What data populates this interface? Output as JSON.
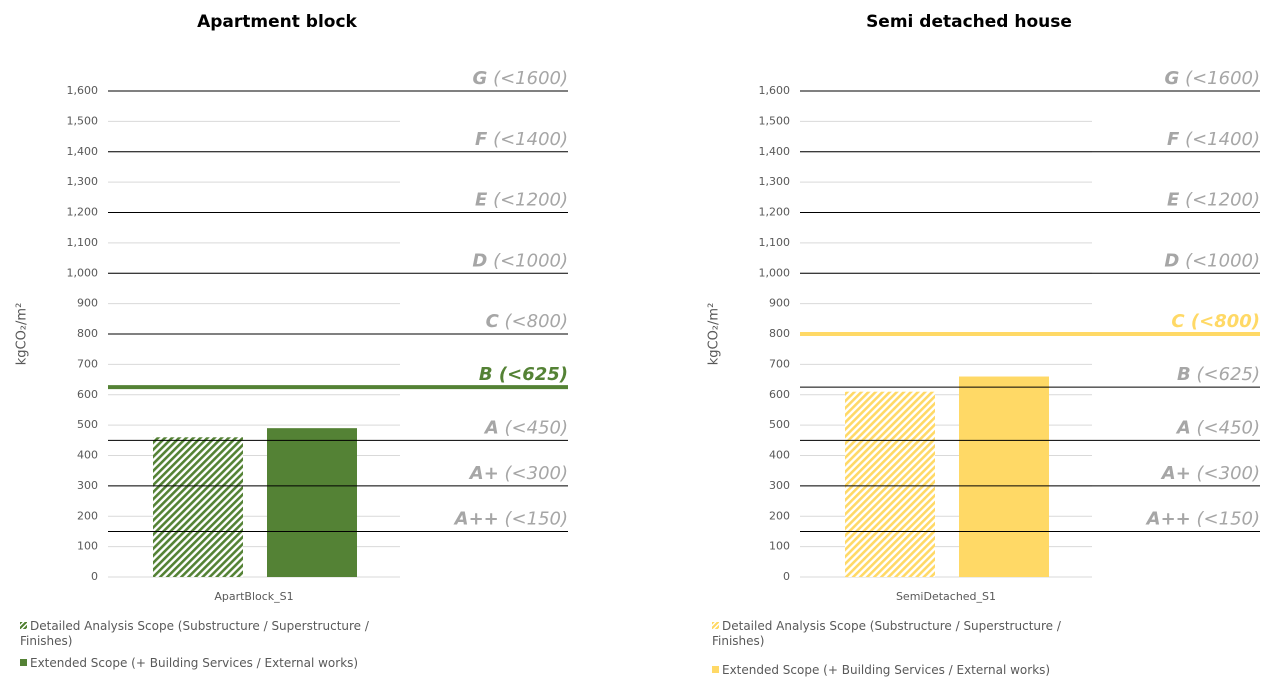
{
  "chart_data": [
    {
      "type": "bar",
      "title": "Apartment block",
      "y_label": "kgCO₂/m²",
      "categories": [
        "ApartBlock_S1"
      ],
      "series": [
        {
          "name": "Detailed Analysis Scope (Substructure / Superstructure / Finishes)",
          "color": "#548235",
          "pattern": "hatch",
          "values": [
            460
          ]
        },
        {
          "name": "Extended Scope (+ Building Services  / External works)",
          "color": "#548235",
          "values": [
            490
          ]
        }
      ],
      "ylim": [
        0,
        1600
      ],
      "yticks": [
        0,
        100,
        200,
        300,
        400,
        500,
        600,
        700,
        800,
        900,
        {
          "value": 1000,
          "label": "1,000"
        },
        {
          "value": 1100,
          "label": "1,100"
        },
        {
          "value": 1200,
          "label": "1,200"
        },
        {
          "value": 1300,
          "label": "1,300"
        },
        {
          "value": 1400,
          "label": "1,400"
        },
        {
          "value": 1500,
          "label": "1,500"
        },
        {
          "value": 1600,
          "label": "1,600"
        }
      ],
      "grid": true,
      "thresholds": [
        {
          "rating": "G",
          "limit": "(<1600)",
          "value": 1600
        },
        {
          "rating": "F",
          "limit": "(<1400)",
          "value": 1400
        },
        {
          "rating": "E",
          "limit": "(<1200)",
          "value": 1200
        },
        {
          "rating": "D",
          "limit": "(<1000)",
          "value": 1000
        },
        {
          "rating": "C",
          "limit": "(<800)",
          "value": 800
        },
        {
          "rating": "B",
          "limit": "(<625)",
          "value": 625
        },
        {
          "rating": "A",
          "limit": "(<450)",
          "value": 450
        },
        {
          "rating": "A+",
          "limit": "(<300)",
          "value": 300
        },
        {
          "rating": "A++",
          "limit": "(<150)",
          "value": 150
        }
      ],
      "highlighted": "B",
      "highlight_color": "#548235"
    },
    {
      "type": "bar",
      "title": "Semi detached house",
      "y_label": "kgCO₂/m²",
      "categories": [
        "SemiDetached_S1"
      ],
      "series": [
        {
          "name": "Detailed Analysis Scope (Substructure / Superstructure / Finishes)",
          "color": "#ffd966",
          "pattern": "hatch",
          "values": [
            610
          ]
        },
        {
          "name": "Extended Scope (+ Building Services  / External works)",
          "color": "#ffd966",
          "values": [
            660
          ]
        }
      ],
      "ylim": [
        0,
        1600
      ],
      "yticks": [
        0,
        100,
        200,
        300,
        400,
        500,
        600,
        700,
        800,
        900,
        {
          "value": 1000,
          "label": "1,000"
        },
        {
          "value": 1100,
          "label": "1,100"
        },
        {
          "value": 1200,
          "label": "1,200"
        },
        {
          "value": 1300,
          "label": "1,300"
        },
        {
          "value": 1400,
          "label": "1,400"
        },
        {
          "value": 1500,
          "label": "1,500"
        },
        {
          "value": 1600,
          "label": "1,600"
        }
      ],
      "grid": true,
      "thresholds": [
        {
          "rating": "G",
          "limit": "(<1600)",
          "value": 1600
        },
        {
          "rating": "F",
          "limit": "(<1400)",
          "value": 1400
        },
        {
          "rating": "E",
          "limit": "(<1200)",
          "value": 1200
        },
        {
          "rating": "D",
          "limit": "(<1000)",
          "value": 1000
        },
        {
          "rating": "C",
          "limit": "(<800)",
          "value": 800
        },
        {
          "rating": "B",
          "limit": "(<625)",
          "value": 625
        },
        {
          "rating": "A",
          "limit": "(<450)",
          "value": 450
        },
        {
          "rating": "A+",
          "limit": "(<300)",
          "value": 300
        },
        {
          "rating": "A++",
          "limit": "(<150)",
          "value": 150
        }
      ],
      "highlighted": "C",
      "highlight_color": "#ffd966"
    }
  ]
}
